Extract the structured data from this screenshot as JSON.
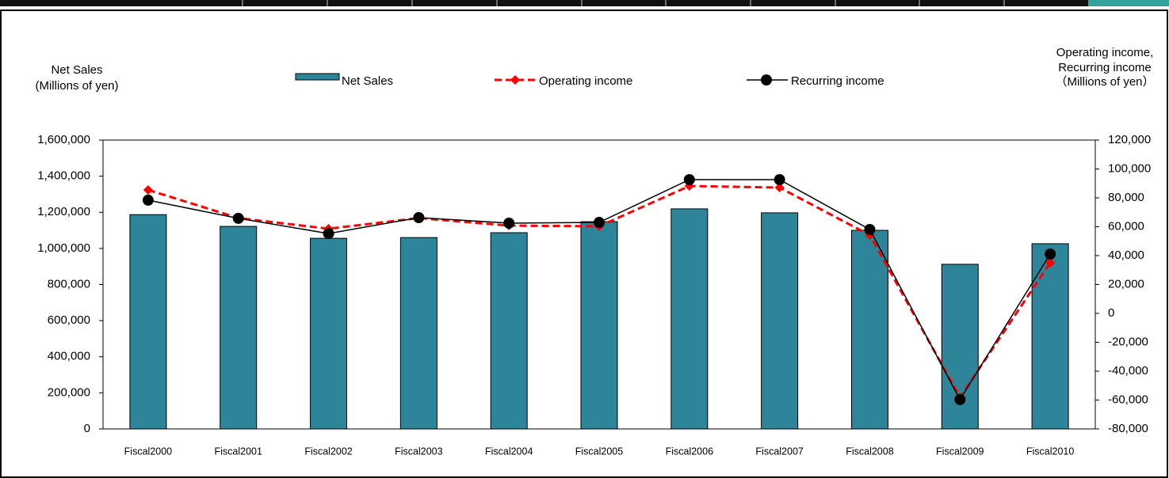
{
  "chart_data": {
    "type": "bar_line",
    "left_axis_title": [
      "Net Sales",
      "(Millions of yen)"
    ],
    "right_axis_title": [
      "Operating income,",
      "Recurring income",
      "（Millions of yen）"
    ],
    "categories": [
      "Fiscal2000",
      "Fiscal2001",
      "Fiscal2002",
      "Fiscal2003",
      "Fiscal2004",
      "Fiscal2005",
      "Fiscal2006",
      "Fiscal2007",
      "Fiscal2008",
      "Fiscal2009",
      "Fiscal2010"
    ],
    "series": [
      {
        "name": "Net Sales",
        "type": "bar",
        "color": "#2e8599",
        "values": [
          1187000,
          1122000,
          1056000,
          1060000,
          1087000,
          1148000,
          1219000,
          1197000,
          1100000,
          912000,
          1026000
        ]
      },
      {
        "name": "Operating income",
        "type": "line",
        "axis": "y2",
        "color": "#ff0000",
        "dashed": true,
        "marker": "diamond",
        "values": [
          85500,
          66000,
          58600,
          66000,
          60800,
          60300,
          88200,
          87100,
          54200,
          -58000,
          35000
        ]
      },
      {
        "name": "Recurring income",
        "type": "line",
        "axis": "y2",
        "color": "#000000",
        "dashed": false,
        "marker": "circle",
        "values": [
          78400,
          65800,
          55300,
          66300,
          62500,
          63000,
          92600,
          92600,
          58100,
          -59700,
          41100
        ]
      }
    ],
    "ylim": [
      0,
      1600000
    ],
    "yticks": [
      0,
      {
        "value": 200000,
        "label": "200,000"
      },
      {
        "value": 400000,
        "label": "400,000"
      },
      {
        "value": 600000,
        "label": "600,000"
      },
      {
        "value": 800000,
        "label": "800,000"
      },
      {
        "value": 1000000,
        "label": "1,000,000"
      },
      {
        "value": 1200000,
        "label": "1,200,000"
      },
      {
        "value": 1400000,
        "label": "1,400,000"
      },
      {
        "value": 1600000,
        "label": "1,600,000"
      }
    ],
    "y2lim": [
      -80000,
      120000
    ],
    "y2ticks": [
      {
        "value": -80000,
        "label": "-80,000"
      },
      {
        "value": -60000,
        "label": "-60,000"
      },
      {
        "value": -40000,
        "label": "-40,000"
      },
      {
        "value": -20000,
        "label": "-20,000"
      },
      0,
      {
        "value": 20000,
        "label": "20,000"
      },
      {
        "value": 40000,
        "label": "40,000"
      },
      {
        "value": 60000,
        "label": "60,000"
      },
      {
        "value": 80000,
        "label": "80,000"
      },
      {
        "value": 100000,
        "label": "100,000"
      },
      {
        "value": 120000,
        "label": "120,000"
      }
    ],
    "y2_negative_tick_color": "#ff0000",
    "grid": false
  }
}
